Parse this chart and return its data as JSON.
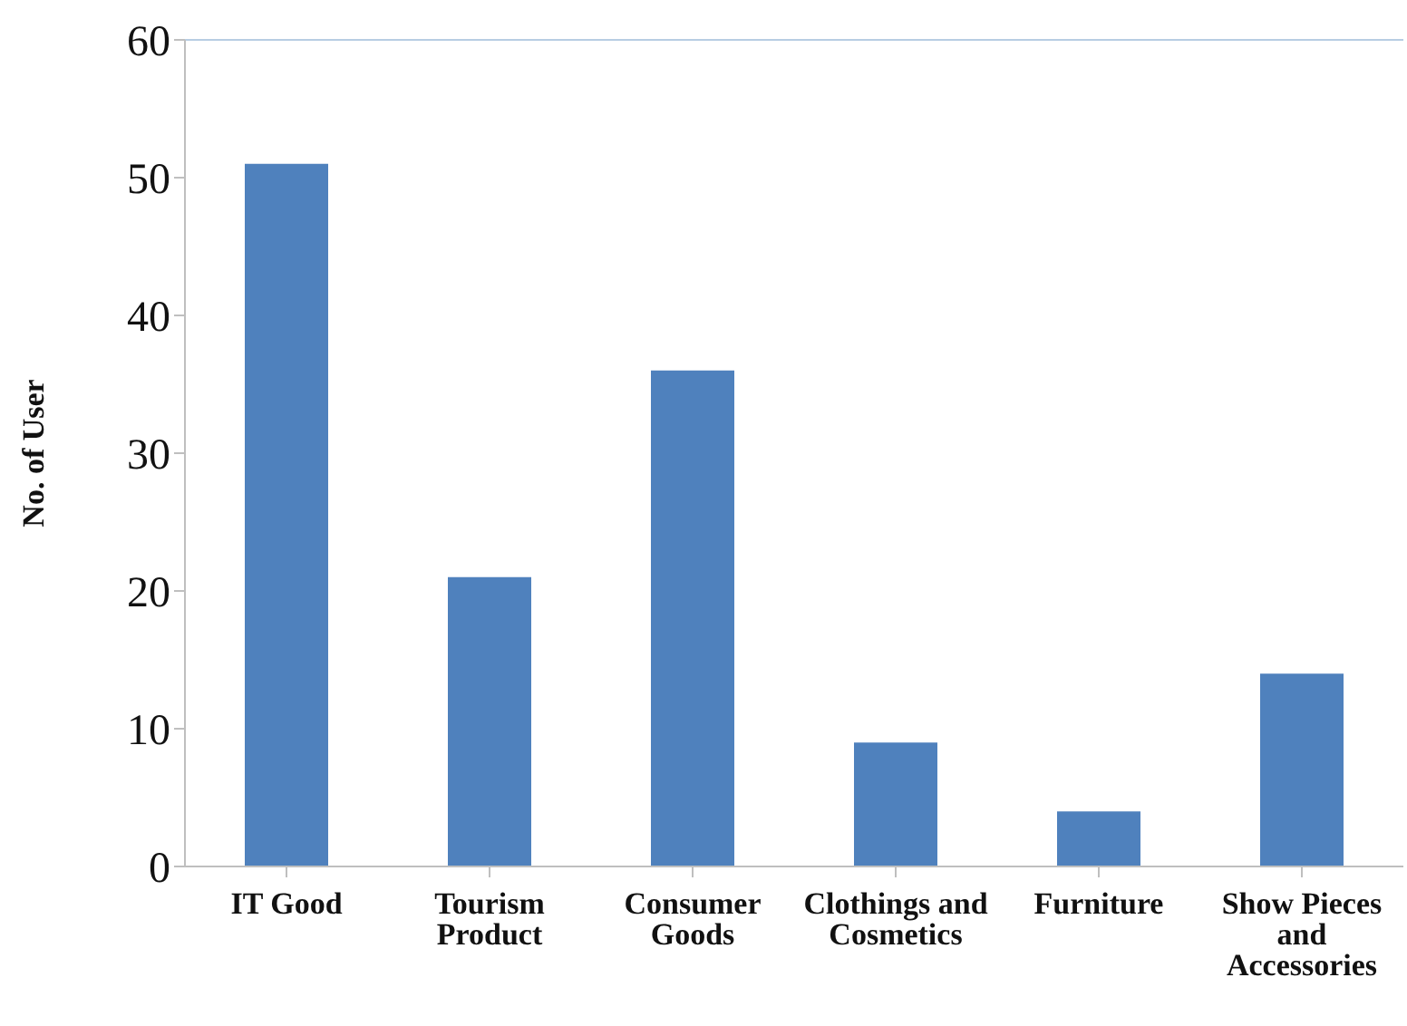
{
  "chart_data": {
    "type": "bar",
    "ylabel": "No. of User",
    "categories": [
      "IT Good",
      "Tourism Product",
      "Consumer Goods",
      "Clothings and Cosmetics",
      "Furniture",
      "Show Pieces and Accessories"
    ],
    "values": [
      51,
      21,
      36,
      9,
      4,
      14
    ],
    "color": "#4f81bd",
    "ylim": [
      0,
      60
    ],
    "yticks": [
      0,
      10,
      20,
      30,
      40,
      50,
      60
    ],
    "grid": false,
    "legend": false
  }
}
